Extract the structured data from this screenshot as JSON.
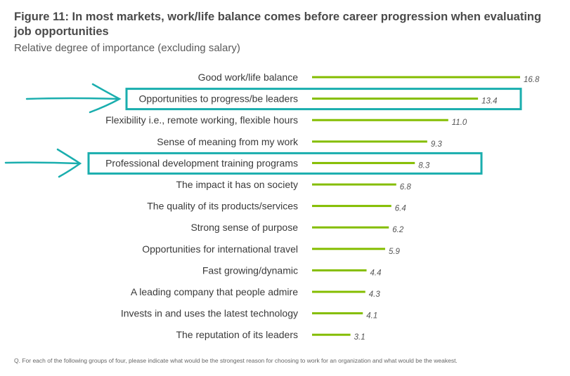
{
  "colors": {
    "bar": "#84bd00",
    "highlight": "#1aaeae",
    "text": "#3a3a3a",
    "value_text": "#555555"
  },
  "figure": {
    "title": "Figure 11: In most markets, work/life balance comes before career progression when evaluating job opportunities",
    "subtitle": "Relative degree of importance (excluding salary)",
    "note": "Q. For each of the following groups of four, please indicate what would be the strongest reason for choosing to work for an organization and what would be the weakest."
  },
  "chart_data": {
    "type": "bar",
    "orientation": "horizontal",
    "categories": [
      "Good work/life balance",
      "Opportunities to progress/be leaders",
      "Flexibility i.e., remote working, flexible hours",
      "Sense of meaning from my work",
      "Professional development training programs",
      "The impact it has on society",
      "The quality of its products/services",
      "Strong sense of purpose",
      "Opportunities for international travel",
      "Fast growing/dynamic",
      "A leading company that people admire",
      "Invests in and uses the latest technology",
      "The reputation of its leaders"
    ],
    "values": [
      16.8,
      13.4,
      11.0,
      9.3,
      8.3,
      6.8,
      6.4,
      6.2,
      5.9,
      4.4,
      4.3,
      4.1,
      3.1
    ],
    "value_labels": [
      "16.8",
      "13.4",
      "11.0",
      "9.3",
      "8.3",
      "6.8",
      "6.4",
      "6.2",
      "5.9",
      "4.4",
      "4.3",
      "4.1",
      "3.1"
    ],
    "highlighted": [
      "Opportunities to progress/be leaders",
      "Professional development training programs"
    ],
    "xlim": [
      0,
      16.8
    ],
    "grid": false,
    "legend": "none"
  }
}
